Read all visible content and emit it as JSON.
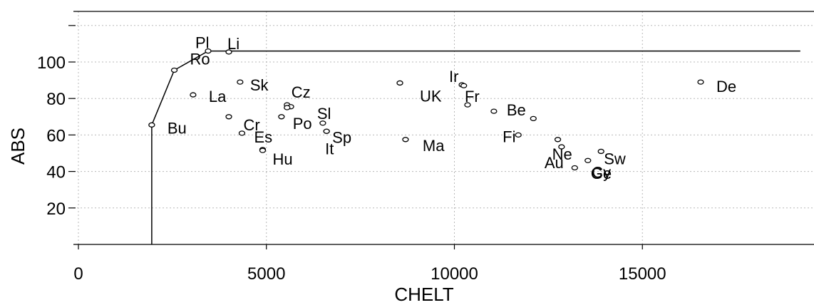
{
  "chart_data": {
    "type": "scatter",
    "xlabel": "CHELT",
    "ylabel": "ABS",
    "xlim": [
      0,
      19200
    ],
    "ylim": [
      0,
      122
    ],
    "x_ticks": [
      0,
      5000,
      10000,
      15000
    ],
    "y_ticks": [
      20,
      40,
      60,
      80,
      100
    ],
    "y_tick_labels": [
      "20",
      "40",
      "60",
      "80",
      "100"
    ],
    "x_tick_labels": [
      "0",
      "5000",
      "10000",
      "15000"
    ],
    "grid": true,
    "points": [
      {
        "label": "Bu",
        "x": 1950,
        "y": 65.5
      },
      {
        "label": "Ro",
        "x": 2550,
        "y": 95.5
      },
      {
        "label": "Pl",
        "x": 3450,
        "y": 106
      },
      {
        "label": "Li",
        "x": 4000,
        "y": 105.5
      },
      {
        "label": "La",
        "x": 3050,
        "y": 82
      },
      {
        "label": "",
        "x": 4000,
        "y": 70
      },
      {
        "label": "Sk",
        "x": 4300,
        "y": 89
      },
      {
        "label": "Cr",
        "x": 4350,
        "y": 61
      },
      {
        "label": "Es",
        "x": 4900,
        "y": 52
      },
      {
        "label": "Hu",
        "x": 4900,
        "y": 51.5
      },
      {
        "label": "",
        "x": 5400,
        "y": 70
      },
      {
        "label": "Cz",
        "x": 5550,
        "y": 76.5
      },
      {
        "label": "",
        "x": 5650,
        "y": 75.5
      },
      {
        "label": "Po",
        "x": 5550,
        "y": 75
      },
      {
        "label": "Sl",
        "x": 6500,
        "y": 66.5
      },
      {
        "label": "It",
        "x": 6600,
        "y": 62
      },
      {
        "label": "Sp",
        "x": 6600,
        "y": 62
      },
      {
        "label": "UK",
        "x": 8550,
        "y": 88.5
      },
      {
        "label": "Ma",
        "x": 8700,
        "y": 57.5
      },
      {
        "label": "Ir",
        "x": 10200,
        "y": 87.5
      },
      {
        "label": "",
        "x": 10250,
        "y": 87
      },
      {
        "label": "Fr",
        "x": 10350,
        "y": 76.5
      },
      {
        "label": "Be",
        "x": 11050,
        "y": 73
      },
      {
        "label": "",
        "x": 12100,
        "y": 69
      },
      {
        "label": "Fi",
        "x": 11700,
        "y": 60
      },
      {
        "label": "Ne",
        "x": 12750,
        "y": 57.5
      },
      {
        "label": "Au",
        "x": 12850,
        "y": 53.5
      },
      {
        "label": "Cy",
        "x": 13200,
        "y": 42
      },
      {
        "label": "Ge",
        "x": 13550,
        "y": 46
      },
      {
        "label": "Sw",
        "x": 13900,
        "y": 51
      },
      {
        "label": "De",
        "x": 16550,
        "y": 89
      }
    ],
    "frontier": [
      {
        "x": 1950,
        "y": 0
      },
      {
        "x": 1950,
        "y": 65.5
      },
      {
        "x": 2550,
        "y": 95.5
      },
      {
        "x": 3450,
        "y": 106
      },
      {
        "x": 19200,
        "y": 106
      }
    ]
  }
}
